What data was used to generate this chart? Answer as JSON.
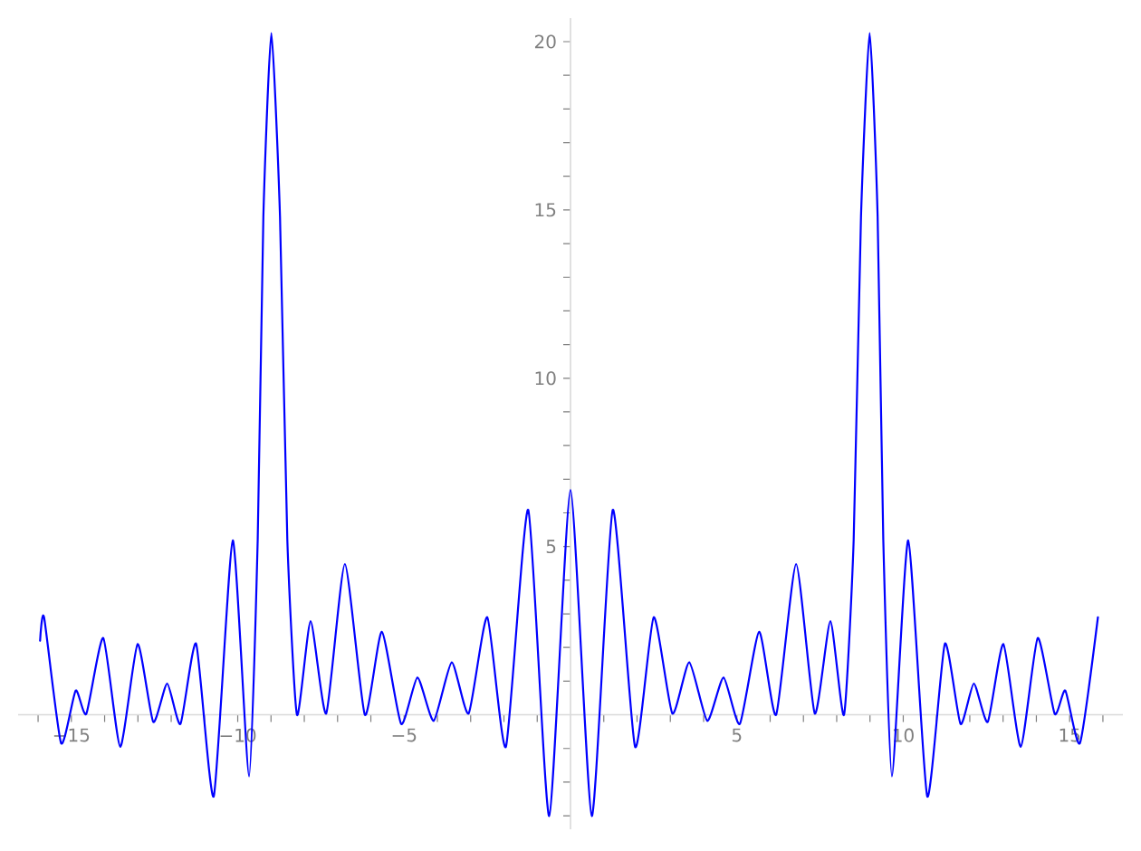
{
  "chart_data": {
    "type": "line",
    "x": [
      -15.94,
      -15.82,
      -15.31,
      -14.87,
      -14.55,
      -14.04,
      -13.53,
      -13.01,
      -12.54,
      -12.12,
      -11.72,
      -11.25,
      -10.72,
      -10.15,
      -9.66,
      -9.4,
      -9.23,
      -8.99,
      -8.73,
      -8.51,
      -8.22,
      -7.81,
      -7.34,
      -6.78,
      -6.18,
      -5.67,
      -5.09,
      -4.6,
      -4.11,
      -3.57,
      -3.06,
      -2.5,
      -1.94,
      -1.27,
      -0.64,
      0,
      0.64,
      1.27,
      1.94,
      2.5,
      3.06,
      3.57,
      4.11,
      4.6,
      5.09,
      5.67,
      6.18,
      6.78,
      7.34,
      7.81,
      8.22,
      8.51,
      8.73,
      8.99,
      9.23,
      9.4,
      9.66,
      10.15,
      10.72,
      11.25,
      11.72,
      12.12,
      12.54,
      13.01,
      13.53,
      14.04,
      14.55,
      14.87,
      15.31,
      15.85
    ],
    "series": [
      {
        "color": "#0000ff",
        "values": [
          2.2,
          2.9,
          -0.84,
          0.72,
          0.03,
          2.28,
          -0.95,
          2.1,
          -0.21,
          0.93,
          -0.27,
          2.11,
          -2.42,
          5.18,
          -1.83,
          5.2,
          14.8,
          20.25,
          14.8,
          5.2,
          0,
          2.78,
          0.04,
          4.48,
          0,
          2.47,
          -0.27,
          1.11,
          -0.18,
          1.56,
          0.04,
          2.9,
          -0.95,
          6.09,
          -3.01,
          6.68,
          -3.01,
          6.09,
          -0.95,
          2.9,
          0.04,
          1.56,
          -0.18,
          1.11,
          -0.27,
          2.47,
          0,
          4.48,
          0.04,
          2.78,
          0,
          5.2,
          14.8,
          20.25,
          14.8,
          5.2,
          -1.83,
          5.18,
          -2.42,
          2.11,
          -0.27,
          0.93,
          -0.21,
          2.1,
          -0.95,
          2.28,
          0.03,
          0.72,
          -0.84,
          2.9
        ]
      }
    ],
    "xlim": [
      -16.6,
      16.6
    ],
    "ylim": [
      -3.4,
      20.7
    ],
    "xticks": [
      {
        "value": -16,
        "label": null
      },
      {
        "value": -15,
        "label": "−15"
      },
      {
        "value": -14,
        "label": null
      },
      {
        "value": -13,
        "label": null
      },
      {
        "value": -12,
        "label": null
      },
      {
        "value": -11,
        "label": null
      },
      {
        "value": -10,
        "label": "−10"
      },
      {
        "value": -9,
        "label": null
      },
      {
        "value": -8,
        "label": null
      },
      {
        "value": -7,
        "label": null
      },
      {
        "value": -6,
        "label": null
      },
      {
        "value": -5,
        "label": "−5"
      },
      {
        "value": -4,
        "label": null
      },
      {
        "value": -3,
        "label": null
      },
      {
        "value": -2,
        "label": null
      },
      {
        "value": -1,
        "label": null
      },
      {
        "value": 1,
        "label": null
      },
      {
        "value": 2,
        "label": null
      },
      {
        "value": 3,
        "label": null
      },
      {
        "value": 4,
        "label": null
      },
      5,
      {
        "value": 6,
        "label": null
      },
      {
        "value": 7,
        "label": null
      },
      {
        "value": 8,
        "label": null
      },
      {
        "value": 9,
        "label": null
      },
      10,
      {
        "value": 11,
        "label": null
      },
      {
        "value": 12,
        "label": null
      },
      {
        "value": 13,
        "label": null
      },
      {
        "value": 14,
        "label": null
      },
      15,
      {
        "value": 16,
        "label": null
      }
    ],
    "yticks": [
      {
        "value": -3,
        "label": null
      },
      {
        "value": -2,
        "label": null
      },
      {
        "value": -1,
        "label": null
      },
      {
        "value": 1,
        "label": null
      },
      {
        "value": 2,
        "label": null
      },
      {
        "value": 3,
        "label": null
      },
      {
        "value": 4,
        "label": null
      },
      5,
      {
        "value": 6,
        "label": null
      },
      {
        "value": 7,
        "label": null
      },
      {
        "value": 8,
        "label": null
      },
      {
        "value": 9,
        "label": null
      },
      10,
      {
        "value": 11,
        "label": null
      },
      {
        "value": 12,
        "label": null
      },
      {
        "value": 13,
        "label": null
      },
      {
        "value": 14,
        "label": null
      },
      15,
      {
        "value": 16,
        "label": null
      },
      {
        "value": 17,
        "label": null
      },
      {
        "value": 18,
        "label": null
      },
      {
        "value": 19,
        "label": null
      },
      20
    ],
    "marker": "none",
    "line_style": "solid"
  }
}
